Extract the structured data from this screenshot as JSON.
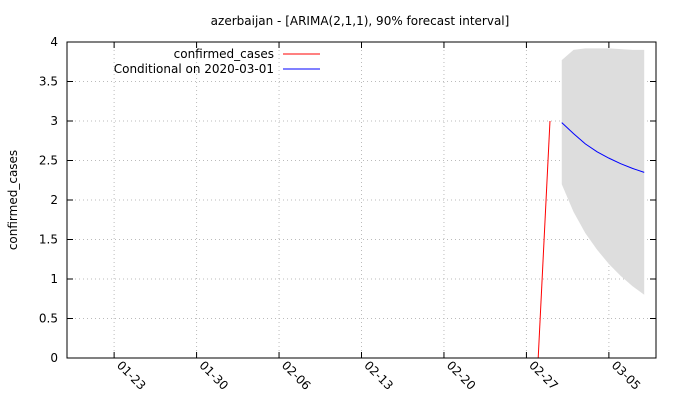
{
  "chart_data": {
    "type": "line",
    "title": "azerbaijan -  [ARIMA(2,1,1), 90% forecast interval]",
    "xlabel": "",
    "ylabel": "confirmed_cases",
    "x_range": [
      "2020-01-19",
      "2020-03-09"
    ],
    "ylim": [
      0,
      4
    ],
    "x_ticks": [
      {
        "date": "2020-01-23",
        "label": "01-23"
      },
      {
        "date": "2020-01-30",
        "label": "01-30"
      },
      {
        "date": "2020-02-06",
        "label": "02-06"
      },
      {
        "date": "2020-02-13",
        "label": "02-13"
      },
      {
        "date": "2020-02-20",
        "label": "02-20"
      },
      {
        "date": "2020-02-27",
        "label": "02-27"
      },
      {
        "date": "2020-03-05",
        "label": "03-05"
      }
    ],
    "y_ticks": [
      0,
      0.5,
      1,
      1.5,
      2,
      2.5,
      3,
      3.5,
      4
    ],
    "y_tick_labels": [
      "0",
      "0.5",
      "1",
      "1.5",
      "2",
      "2.5",
      "3",
      "3.5",
      "4"
    ],
    "grid": true,
    "legend_position": "top-left",
    "series": [
      {
        "name": "confirmed_cases",
        "color": "#ff0000",
        "points": [
          {
            "x": "2020-02-28",
            "y": 0
          },
          {
            "x": "2020-02-29",
            "y": 3
          }
        ]
      },
      {
        "name": "Conditional on 2020-03-01",
        "color": "#0000ff",
        "points": [
          {
            "x": "2020-03-01",
            "y": 2.98
          },
          {
            "x": "2020-03-02",
            "y": 2.84
          },
          {
            "x": "2020-03-03",
            "y": 2.71
          },
          {
            "x": "2020-03-04",
            "y": 2.61
          },
          {
            "x": "2020-03-05",
            "y": 2.53
          },
          {
            "x": "2020-03-06",
            "y": 2.46
          },
          {
            "x": "2020-03-07",
            "y": 2.4
          },
          {
            "x": "2020-03-08",
            "y": 2.35
          }
        ]
      }
    ],
    "forecast_interval": {
      "color": "#dddddd",
      "points": [
        {
          "x": "2020-03-01",
          "lower": 2.2,
          "upper": 3.77
        },
        {
          "x": "2020-03-02",
          "lower": 1.85,
          "upper": 3.9
        },
        {
          "x": "2020-03-03",
          "lower": 1.58,
          "upper": 3.92
        },
        {
          "x": "2020-03-04",
          "lower": 1.37,
          "upper": 3.92
        },
        {
          "x": "2020-03-05",
          "lower": 1.19,
          "upper": 3.92
        },
        {
          "x": "2020-03-06",
          "lower": 1.04,
          "upper": 3.91
        },
        {
          "x": "2020-03-07",
          "lower": 0.91,
          "upper": 3.9
        },
        {
          "x": "2020-03-08",
          "lower": 0.8,
          "upper": 3.9
        }
      ]
    }
  }
}
